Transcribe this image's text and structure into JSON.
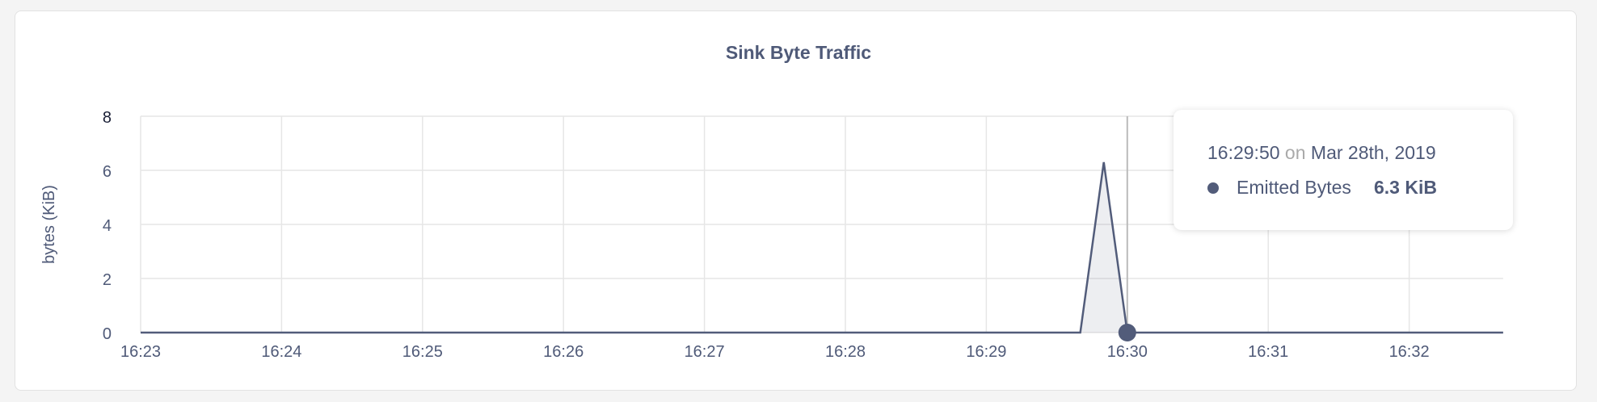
{
  "chart_data": {
    "type": "area",
    "title": "Sink Byte Traffic",
    "ylabel": "bytes (KiB)",
    "xlabel": "",
    "ylim": [
      0,
      8
    ],
    "yticks": [
      "0",
      "2",
      "4",
      "6",
      "8"
    ],
    "xticks": [
      "16:23",
      "16:24",
      "16:25",
      "16:26",
      "16:27",
      "16:28",
      "16:29",
      "16:30",
      "16:31",
      "16:32"
    ],
    "xrange": [
      "16:23:00",
      "16:32:40"
    ],
    "grid": true,
    "series": [
      {
        "name": "Emitted Bytes",
        "color": "#525c7a",
        "points": [
          [
            "16:23:00",
            0
          ],
          [
            "16:29:40",
            0
          ],
          [
            "16:29:50",
            6.3
          ],
          [
            "16:30:00",
            0
          ],
          [
            "16:32:40",
            0
          ]
        ]
      }
    ],
    "hover_time": "16:30:00"
  },
  "tooltip": {
    "time": "16:29:50",
    "on": "on",
    "date": "Mar 28th, 2019",
    "series_name": "Emitted Bytes",
    "value": "6.3 KiB"
  }
}
